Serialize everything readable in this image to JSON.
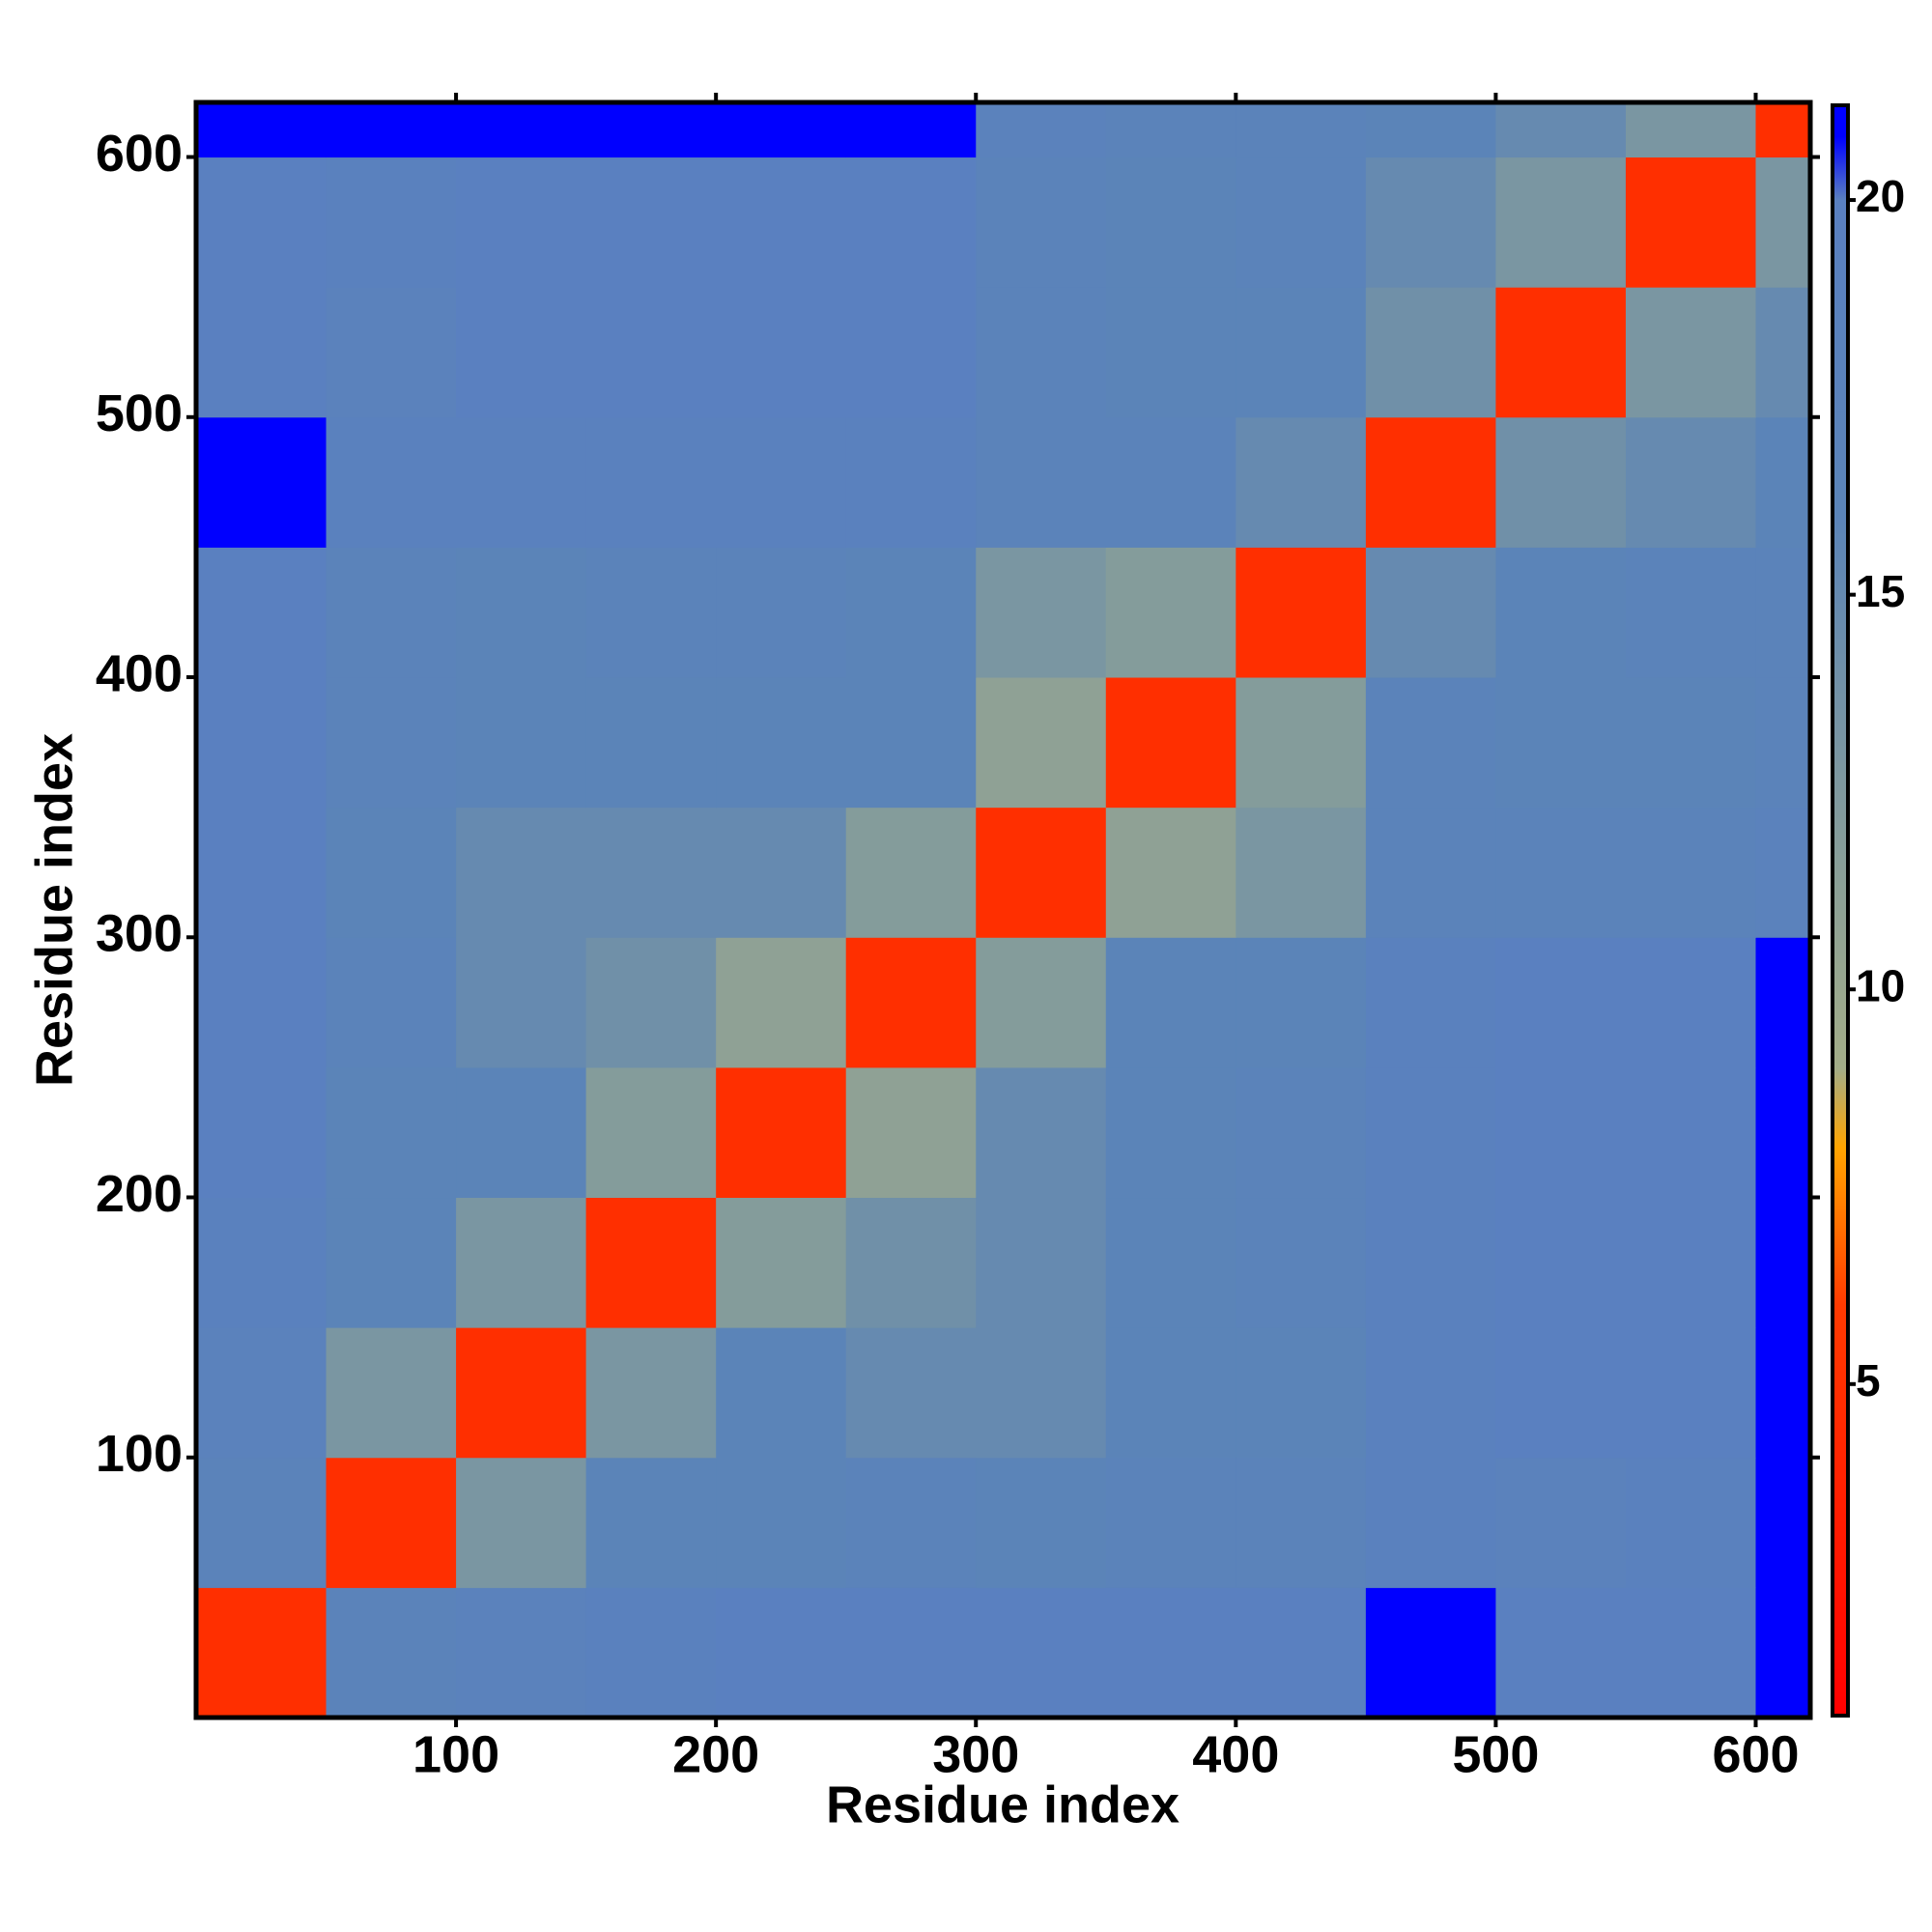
{
  "chart_data": {
    "type": "heatmap",
    "xlabel": "Residue index",
    "ylabel": "Residue index",
    "xbins": [
      0,
      50,
      100,
      150,
      200,
      250,
      300,
      350,
      400,
      450,
      500,
      550,
      600,
      621
    ],
    "ybins": [
      0,
      50,
      100,
      150,
      200,
      250,
      300,
      350,
      400,
      450,
      500,
      550,
      600,
      621
    ],
    "z": [
      [
        5,
        17,
        18,
        19,
        20,
        20,
        20,
        20,
        20,
        21,
        20,
        20,
        21
      ],
      [
        17,
        5,
        13,
        16,
        16,
        17,
        16,
        17,
        17,
        19,
        18,
        19,
        21
      ],
      [
        18,
        13,
        5,
        13,
        16,
        15,
        15,
        16,
        16,
        19,
        20,
        20,
        21
      ],
      [
        19,
        16,
        13,
        5,
        12,
        14,
        15,
        16,
        17,
        19,
        20,
        20,
        21
      ],
      [
        20,
        16,
        16,
        12,
        5,
        11,
        15,
        16,
        17,
        19,
        20,
        20,
        21
      ],
      [
        20,
        17,
        15,
        14,
        11,
        5,
        12,
        16,
        16,
        19,
        20,
        20,
        21
      ],
      [
        20,
        16,
        15,
        15,
        15,
        12,
        5,
        11,
        13,
        17,
        17,
        17,
        18
      ],
      [
        20,
        17,
        16,
        16,
        16,
        16,
        11,
        5,
        12,
        17,
        16,
        16,
        17
      ],
      [
        20,
        17,
        16,
        17,
        17,
        16,
        13,
        12,
        5,
        15,
        16,
        17,
        17
      ],
      [
        21,
        19,
        19,
        19,
        19,
        19,
        17,
        17,
        15,
        5,
        14,
        15,
        16
      ],
      [
        20,
        18,
        20,
        20,
        20,
        20,
        17,
        16,
        16,
        14,
        5,
        13,
        15
      ],
      [
        20,
        19,
        20,
        20,
        20,
        20,
        17,
        16,
        17,
        15,
        13,
        5,
        13
      ],
      [
        21,
        21,
        21,
        21,
        21,
        21,
        18,
        17,
        17,
        16,
        15,
        13,
        5
      ]
    ],
    "xlim": [
      0,
      621
    ],
    "ylim": [
      0,
      621
    ],
    "xticks": [
      100,
      200,
      300,
      400,
      500,
      600
    ],
    "yticks": [
      100,
      200,
      300,
      400,
      500,
      600
    ],
    "zlim": [
      0.8,
      21.2
    ],
    "zticks": [
      5,
      10,
      15,
      20
    ],
    "colorscale": [
      [
        0.8,
        "#ff0000"
      ],
      [
        6,
        "#ff3a00"
      ],
      [
        8,
        "#ffa500"
      ],
      [
        9,
        "#a3ad88"
      ],
      [
        14,
        "#7090a8"
      ],
      [
        16,
        "#5b84b8"
      ],
      [
        20,
        "#5a80c0"
      ],
      [
        20.8,
        "#0000ff"
      ]
    ]
  }
}
